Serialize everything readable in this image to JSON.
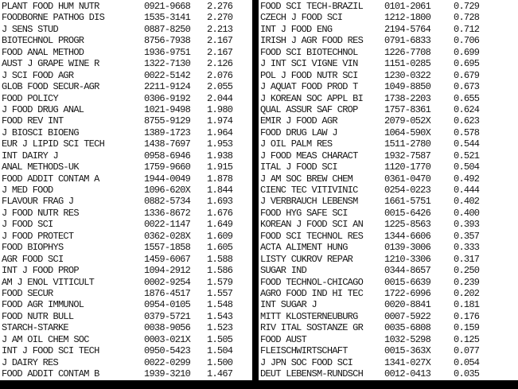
{
  "colors": {
    "background": "#ffffff",
    "text": "#151515",
    "bars": "#000000"
  },
  "table": {
    "fields": [
      "journal_abbreviation",
      "issn",
      "impact_factor"
    ]
  },
  "columns": [
    {
      "id": "left",
      "rows": [
        {
          "name": "PLANT FOOD HUM NUTR",
          "issn": "0921-9668",
          "value": "2.276"
        },
        {
          "name": "FOODBORNE PATHOG DIS",
          "issn": "1535-3141",
          "value": "2.270"
        },
        {
          "name": "J SENS STUD",
          "issn": "0887-8250",
          "value": "2.213"
        },
        {
          "name": "BIOTECHNOL PROGR",
          "issn": "8756-7938",
          "value": "2.167"
        },
        {
          "name": "FOOD ANAL METHOD",
          "issn": "1936-9751",
          "value": "2.167"
        },
        {
          "name": "AUST J GRAPE WINE R",
          "issn": "1322-7130",
          "value": "2.126"
        },
        {
          "name": "J SCI FOOD AGR",
          "issn": "0022-5142",
          "value": "2.076"
        },
        {
          "name": "GLOB FOOD SECUR-AGR",
          "issn": "2211-9124",
          "value": "2.055"
        },
        {
          "name": "FOOD POLICY",
          "issn": "0306-9192",
          "value": "2.044"
        },
        {
          "name": "J FOOD DRUG ANAL",
          "issn": "1021-9498",
          "value": "1.980"
        },
        {
          "name": "FOOD REV INT",
          "issn": "8755-9129",
          "value": "1.974"
        },
        {
          "name": "J BIOSCI BIOENG",
          "issn": "1389-1723",
          "value": "1.964"
        },
        {
          "name": "EUR J LIPID SCI TECH",
          "issn": "1438-7697",
          "value": "1.953"
        },
        {
          "name": "INT DAIRY J",
          "issn": "0958-6946",
          "value": "1.938"
        },
        {
          "name": "ANAL METHODS-UK",
          "issn": "1759-9660",
          "value": "1.915"
        },
        {
          "name": "FOOD ADDIT CONTAM A",
          "issn": "1944-0049",
          "value": "1.878"
        },
        {
          "name": "J MED FOOD",
          "issn": "1096-620X",
          "value": "1.844"
        },
        {
          "name": "FLAVOUR FRAG J",
          "issn": "0882-5734",
          "value": "1.693"
        },
        {
          "name": "J FOOD NUTR RES",
          "issn": "1336-8672",
          "value": "1.676"
        },
        {
          "name": "J FOOD SCI",
          "issn": "0022-1147",
          "value": "1.649"
        },
        {
          "name": "J FOOD PROTECT",
          "issn": "0362-028X",
          "value": "1.609"
        },
        {
          "name": "FOOD BIOPHYS",
          "issn": "1557-1858",
          "value": "1.605"
        },
        {
          "name": "AGR FOOD SCI",
          "issn": "1459-6067",
          "value": "1.588"
        },
        {
          "name": "INT J FOOD PROP",
          "issn": "1094-2912",
          "value": "1.586"
        },
        {
          "name": "AM J ENOL VITICULT",
          "issn": "0002-9254",
          "value": "1.579"
        },
        {
          "name": "FOOD SECUR",
          "issn": "1876-4517",
          "value": "1.557"
        },
        {
          "name": "FOOD AGR IMMUNOL",
          "issn": "0954-0105",
          "value": "1.548"
        },
        {
          "name": "FOOD NUTR BULL",
          "issn": "0379-5721",
          "value": "1.543"
        },
        {
          "name": "STARCH-STARKE",
          "issn": "0038-9056",
          "value": "1.523"
        },
        {
          "name": "J AM OIL CHEM SOC",
          "issn": "0003-021X",
          "value": "1.505"
        },
        {
          "name": "INT J FOOD SCI TECH",
          "issn": "0950-5423",
          "value": "1.504"
        },
        {
          "name": "J DAIRY RES",
          "issn": "0022-0299",
          "value": "1.500"
        },
        {
          "name": "FOOD ADDIT CONTAM B",
          "issn": "1939-3210",
          "value": "1.467"
        }
      ]
    },
    {
      "id": "right",
      "rows": [
        {
          "name": "FOOD SCI TECH-BRAZIL",
          "issn": "0101-2061",
          "value": "0.729"
        },
        {
          "name": "CZECH J FOOD SCI",
          "issn": "1212-1800",
          "value": "0.728"
        },
        {
          "name": "INT J FOOD ENG",
          "issn": "2194-5764",
          "value": "0.712"
        },
        {
          "name": "IRISH J AGR FOOD RES",
          "issn": "0791-6833",
          "value": "0.706"
        },
        {
          "name": "FOOD SCI BIOTECHNOL",
          "issn": "1226-7708",
          "value": "0.699"
        },
        {
          "name": "J INT SCI VIGNE VIN",
          "issn": "1151-0285",
          "value": "0.695"
        },
        {
          "name": "POL J FOOD NUTR SCI",
          "issn": "1230-0322",
          "value": "0.679"
        },
        {
          "name": "J AQUAT FOOD PROD T",
          "issn": "1049-8850",
          "value": "0.673"
        },
        {
          "name": "J KOREAN SOC APPL BI",
          "issn": "1738-2203",
          "value": "0.655"
        },
        {
          "name": "QUAL ASSUR SAF CROP",
          "issn": "1757-8361",
          "value": "0.624"
        },
        {
          "name": "EMIR J FOOD AGR",
          "issn": "2079-052X",
          "value": "0.623"
        },
        {
          "name": "FOOD DRUG LAW J",
          "issn": "1064-590X",
          "value": "0.578"
        },
        {
          "name": "J OIL PALM RES",
          "issn": "1511-2780",
          "value": "0.544"
        },
        {
          "name": "J FOOD MEAS CHARACT",
          "issn": "1932-7587",
          "value": "0.521"
        },
        {
          "name": "ITAL J FOOD SCI",
          "issn": "1120-1770",
          "value": "0.504"
        },
        {
          "name": "J AM SOC BREW CHEM",
          "issn": "0361-0470",
          "value": "0.492"
        },
        {
          "name": "CIENC TEC VITIVINIC",
          "issn": "0254-0223",
          "value": "0.444"
        },
        {
          "name": "J VERBRAUCH LEBENSM",
          "issn": "1661-5751",
          "value": "0.402"
        },
        {
          "name": "FOOD HYG SAFE SCI",
          "issn": "0015-6426",
          "value": "0.400"
        },
        {
          "name": "KOREAN J FOOD SCI AN",
          "issn": "1225-8563",
          "value": "0.393"
        },
        {
          "name": "FOOD SCI TECHNOL RES",
          "issn": "1344-6606",
          "value": "0.357"
        },
        {
          "name": "ACTA ALIMENT HUNG",
          "issn": "0139-3006",
          "value": "0.333"
        },
        {
          "name": "LISTY CUKROV REPAR",
          "issn": "1210-3306",
          "value": "0.317"
        },
        {
          "name": "SUGAR IND",
          "issn": "0344-8657",
          "value": "0.250"
        },
        {
          "name": "FOOD TECHNOL-CHICAGO",
          "issn": "0015-6639",
          "value": "0.239"
        },
        {
          "name": "AGRO FOOD IND HI TEC",
          "issn": "1722-6996",
          "value": "0.202"
        },
        {
          "name": "INT SUGAR J",
          "issn": "0020-8841",
          "value": "0.181"
        },
        {
          "name": "MITT KLOSTERNEUBURG",
          "issn": "0007-5922",
          "value": "0.176"
        },
        {
          "name": "RIV ITAL SOSTANZE GR",
          "issn": "0035-6808",
          "value": "0.159"
        },
        {
          "name": "FOOD AUST",
          "issn": "1032-5298",
          "value": "0.125"
        },
        {
          "name": "FLEISCHWIRTSCHAFT",
          "issn": "0015-363X",
          "value": "0.077"
        },
        {
          "name": "J JPN SOC FOOD SCI",
          "issn": "1341-027X",
          "value": "0.054"
        },
        {
          "name": "DEUT LEBENSM-RUNDSCH",
          "issn": "0012-0413",
          "value": "0.035"
        }
      ]
    }
  ]
}
